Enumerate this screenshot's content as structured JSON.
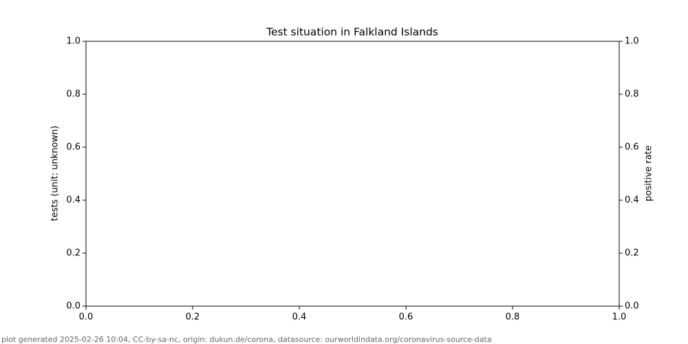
{
  "chart_data": {
    "type": "line",
    "title": "Test situation in Falkland Islands",
    "ylabel": "tests (unit: unknown)",
    "y2label": "positive rate",
    "xlim": [
      0,
      1
    ],
    "ylim": [
      0,
      1
    ],
    "y2lim": [
      0,
      1
    ],
    "xticks": [
      {
        "value": 0,
        "label": "0.0"
      },
      0.2,
      0.4,
      0.6,
      0.8,
      {
        "value": 1,
        "label": "1.0"
      }
    ],
    "yticks": [
      {
        "value": 0,
        "label": "0.0"
      },
      0.2,
      0.4,
      0.6,
      0.8,
      {
        "value": 1,
        "label": "1.0"
      }
    ],
    "y2ticks": [
      {
        "value": 0,
        "label": "0.0"
      },
      0.2,
      0.4,
      0.6,
      0.8,
      {
        "value": 1,
        "label": "1.0"
      }
    ],
    "footer": "plot generated 2025-02-26 10:04, CC-by-sa-nc, origin: dukun.de/corona, datasource: ourworldindata.org/coronavirus-source-data"
  }
}
